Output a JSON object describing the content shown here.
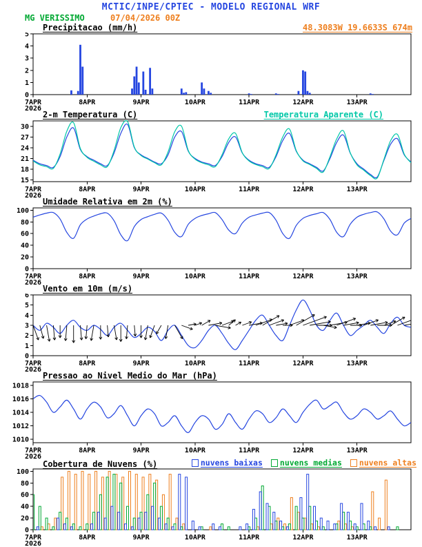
{
  "header": {
    "title": "MCTIC/INPE/CPTEC - MODELO REGIONAL WRF",
    "station": "MG VERISSIMO",
    "run": "07/04/2026 00Z"
  },
  "colors": {
    "blue": "#2546E0",
    "cyan": "#00C8A8",
    "green": "#00A832",
    "orange": "#EE7F1E",
    "black": "#000000"
  },
  "time_axis": {
    "total_hours": 168,
    "ticks_hours": [
      0,
      24,
      48,
      72,
      96,
      120,
      144
    ],
    "tick_labels": [
      "7APR",
      "8APR",
      "9APR",
      "10APR",
      "11APR",
      "12APR",
      "13APR"
    ],
    "start_year": "2026"
  },
  "chart_data": [
    {
      "id": "precip",
      "type": "bar",
      "title": "Precipitacao (mm/h)",
      "right_label": "48.3083W 19.6633S 674m",
      "ylim": [
        0,
        5
      ],
      "yticks": [
        0,
        1,
        2,
        3,
        4,
        5
      ],
      "color": "blue",
      "bars": [
        [
          17,
          0.35
        ],
        [
          20,
          0.3
        ],
        [
          21,
          4.1
        ],
        [
          22,
          2.3
        ],
        [
          44,
          0.5
        ],
        [
          45,
          1.5
        ],
        [
          46,
          2.3
        ],
        [
          47,
          1.0
        ],
        [
          49,
          1.9
        ],
        [
          50,
          0.4
        ],
        [
          52,
          2.2
        ],
        [
          53,
          0.5
        ],
        [
          66,
          0.5
        ],
        [
          67,
          0.15
        ],
        [
          68,
          0.2
        ],
        [
          75,
          1.0
        ],
        [
          76,
          0.5
        ],
        [
          78,
          0.3
        ],
        [
          79,
          0.15
        ],
        [
          96,
          0.1
        ],
        [
          97,
          0.05
        ],
        [
          108,
          0.1
        ],
        [
          109,
          0.05
        ],
        [
          118,
          0.3
        ],
        [
          120,
          2.0
        ],
        [
          121,
          1.9
        ],
        [
          122,
          0.3
        ],
        [
          123,
          0.15
        ],
        [
          150,
          0.1
        ],
        [
          151,
          0.05
        ]
      ]
    },
    {
      "id": "temp",
      "type": "line",
      "title": "2-m Temperatura (C)",
      "right_label": "Temperatura Aparente (C)",
      "ylim": [
        14.5,
        31.5
      ],
      "yticks": [
        15,
        18,
        21,
        24,
        27,
        30
      ],
      "step_hours": 3,
      "series": [
        {
          "name": "2-m Temperatura (C)",
          "color": "blue",
          "values": [
            20.5,
            19.5,
            19.0,
            18.5,
            21.5,
            27.0,
            29.5,
            23.5,
            21.5,
            20.5,
            19.5,
            19.0,
            22.5,
            28.0,
            30.5,
            24.0,
            22.0,
            21.0,
            20.0,
            19.5,
            22.0,
            27.0,
            28.5,
            23.0,
            21.0,
            20.0,
            19.5,
            19.0,
            21.5,
            25.5,
            27.0,
            22.5,
            20.5,
            19.5,
            19.0,
            18.5,
            21.5,
            26.0,
            28.0,
            23.0,
            20.5,
            19.5,
            18.5,
            17.5,
            21.0,
            25.5,
            27.5,
            22.5,
            19.5,
            18.0,
            16.5,
            15.8,
            20.5,
            25.0,
            26.5,
            22.0,
            20.0
          ]
        },
        {
          "name": "Temperatura Aparente (C)",
          "color": "cyan",
          "values": [
            20.3,
            19.2,
            18.7,
            18.2,
            22.2,
            28.6,
            31.0,
            23.8,
            21.3,
            20.2,
            19.2,
            18.7,
            23.2,
            29.6,
            31.3,
            24.2,
            21.8,
            20.8,
            19.8,
            19.2,
            22.8,
            28.5,
            30.0,
            23.2,
            20.8,
            19.8,
            19.2,
            18.7,
            22.0,
            26.5,
            28.0,
            22.6,
            20.3,
            19.3,
            18.7,
            18.2,
            22.0,
            27.0,
            29.2,
            23.2,
            20.3,
            19.3,
            18.2,
            17.2,
            21.5,
            26.5,
            28.7,
            22.6,
            19.2,
            17.7,
            16.2,
            15.5,
            20.8,
            26.0,
            27.7,
            22.2,
            19.8
          ]
        }
      ]
    },
    {
      "id": "umidade",
      "type": "line",
      "title": "Umidade Relativa em 2m (%)",
      "ylim": [
        0,
        104
      ],
      "yticks": [
        0,
        20,
        40,
        60,
        80,
        100
      ],
      "step_hours": 3,
      "series": [
        {
          "name": "Umidade Relativa",
          "color": "blue",
          "values": [
            88,
            92,
            95,
            96,
            85,
            62,
            52,
            75,
            85,
            90,
            94,
            95,
            82,
            58,
            48,
            72,
            84,
            89,
            93,
            95,
            83,
            62,
            55,
            76,
            86,
            91,
            94,
            96,
            84,
            66,
            60,
            78,
            88,
            92,
            95,
            96,
            83,
            60,
            52,
            74,
            86,
            91,
            94,
            96,
            84,
            62,
            55,
            76,
            88,
            93,
            96,
            97,
            85,
            64,
            58,
            78,
            86
          ]
        }
      ]
    },
    {
      "id": "vento",
      "type": "wind",
      "title": "Vento em 10m (m/s)",
      "ylim": [
        0,
        6
      ],
      "yticks": [
        0,
        1,
        2,
        3,
        4,
        5,
        6
      ],
      "step_hours": 3,
      "barb_level": 3,
      "series": [
        {
          "name": "Vento em 10m",
          "color": "blue",
          "values": [
            3.0,
            2.5,
            3.2,
            2.8,
            2.2,
            3.0,
            3.5,
            2.8,
            2.5,
            3.0,
            2.6,
            2.0,
            2.8,
            3.2,
            2.5,
            1.8,
            2.2,
            2.8,
            2.4,
            1.5,
            2.5,
            3.0,
            2.0,
            1.0,
            0.8,
            1.5,
            2.5,
            3.0,
            2.2,
            1.2,
            0.6,
            1.5,
            2.5,
            3.5,
            4.0,
            3.0,
            2.0,
            1.5,
            3.0,
            4.5,
            5.5,
            4.5,
            3.0,
            2.5,
            3.5,
            4.2,
            3.0,
            2.0,
            2.5,
            3.0,
            3.5,
            2.8,
            2.2,
            3.2,
            3.8,
            3.0,
            2.8
          ]
        }
      ],
      "barb_dirs": [
        -70,
        -75,
        -80,
        -85,
        -90,
        -95,
        -90,
        -85,
        -95,
        -100,
        -90,
        -85,
        -80,
        -90,
        -95,
        -85,
        -90,
        -100,
        -110,
        -120,
        -100,
        -60,
        -20,
        10,
        20,
        30,
        10,
        -10,
        20,
        40,
        30,
        20,
        10,
        20,
        30,
        20,
        10,
        0,
        20,
        30,
        20,
        10,
        0,
        -10,
        10,
        20,
        10,
        0,
        10,
        20,
        10,
        0,
        20,
        30,
        20,
        10,
        0
      ]
    },
    {
      "id": "pressao",
      "type": "line",
      "title": "Pressao ao Nivel Medio do Mar (hPa)",
      "ylim": [
        1009.5,
        1018.5
      ],
      "yticks": [
        1010,
        1012,
        1014,
        1016,
        1018
      ],
      "step_hours": 3,
      "series": [
        {
          "name": "Pressao ao Nivel Medio do Mar",
          "color": "blue",
          "values": [
            1016.0,
            1016.5,
            1015.5,
            1014.0,
            1014.8,
            1015.8,
            1014.5,
            1013.0,
            1014.5,
            1015.5,
            1014.8,
            1013.2,
            1013.8,
            1015.0,
            1013.5,
            1012.0,
            1013.5,
            1014.5,
            1013.8,
            1012.0,
            1012.5,
            1013.5,
            1012.0,
            1011.0,
            1012.5,
            1013.5,
            1013.0,
            1011.5,
            1012.2,
            1013.8,
            1012.5,
            1011.5,
            1013.0,
            1014.2,
            1013.8,
            1012.5,
            1013.2,
            1014.5,
            1013.5,
            1012.5,
            1014.0,
            1015.2,
            1015.8,
            1014.5,
            1015.0,
            1015.5,
            1014.0,
            1013.0,
            1013.5,
            1014.5,
            1014.0,
            1013.0,
            1013.5,
            1014.2,
            1013.0,
            1012.0,
            1012.5
          ]
        }
      ]
    },
    {
      "id": "nuvens",
      "type": "outline-bar",
      "title": "Cobertura de Nuvens (%)",
      "ylim": [
        0,
        104
      ],
      "yticks": [
        0,
        20,
        40,
        60,
        80,
        100
      ],
      "step_hours": 3,
      "legend": [
        {
          "label": "nuvens baixas",
          "color": "blue"
        },
        {
          "label": "nuvens medias",
          "color": "green"
        },
        {
          "label": "nuvens altas",
          "color": "orange"
        }
      ],
      "series": [
        {
          "name": "nuvens baixas",
          "color": "blue",
          "offset": -3,
          "values": [
            10,
            5,
            0,
            0,
            20,
            10,
            5,
            0,
            0,
            10,
            30,
            20,
            40,
            30,
            10,
            5,
            20,
            30,
            40,
            20,
            10,
            5,
            95,
            90,
            15,
            5,
            0,
            10,
            5,
            0,
            0,
            5,
            10,
            35,
            65,
            45,
            30,
            15,
            5,
            0,
            55,
            95,
            40,
            20,
            15,
            10,
            45,
            30,
            10,
            45,
            15,
            5,
            0,
            5,
            0,
            0,
            0
          ]
        },
        {
          "name": "nuvens medias",
          "color": "green",
          "offset": 0,
          "values": [
            60,
            40,
            20,
            5,
            30,
            20,
            10,
            5,
            10,
            30,
            60,
            90,
            95,
            80,
            40,
            20,
            30,
            60,
            80,
            40,
            20,
            10,
            5,
            0,
            0,
            5,
            0,
            0,
            10,
            5,
            0,
            0,
            5,
            20,
            75,
            40,
            15,
            5,
            10,
            40,
            20,
            40,
            15,
            5,
            0,
            10,
            30,
            15,
            5,
            10,
            5,
            0,
            0,
            0,
            5,
            0,
            0
          ]
        },
        {
          "name": "nuvens altas",
          "color": "orange",
          "offset": 3,
          "values": [
            0,
            5,
            10,
            20,
            90,
            100,
            95,
            100,
            95,
            100,
            90,
            100,
            95,
            90,
            100,
            95,
            90,
            95,
            85,
            60,
            95,
            20,
            10,
            0,
            0,
            0,
            5,
            0,
            0,
            0,
            0,
            0,
            0,
            5,
            0,
            10,
            20,
            10,
            55,
            30,
            20,
            10,
            5,
            0,
            0,
            15,
            10,
            5,
            0,
            0,
            65,
            20,
            85,
            0,
            0,
            0,
            0
          ]
        }
      ]
    }
  ]
}
